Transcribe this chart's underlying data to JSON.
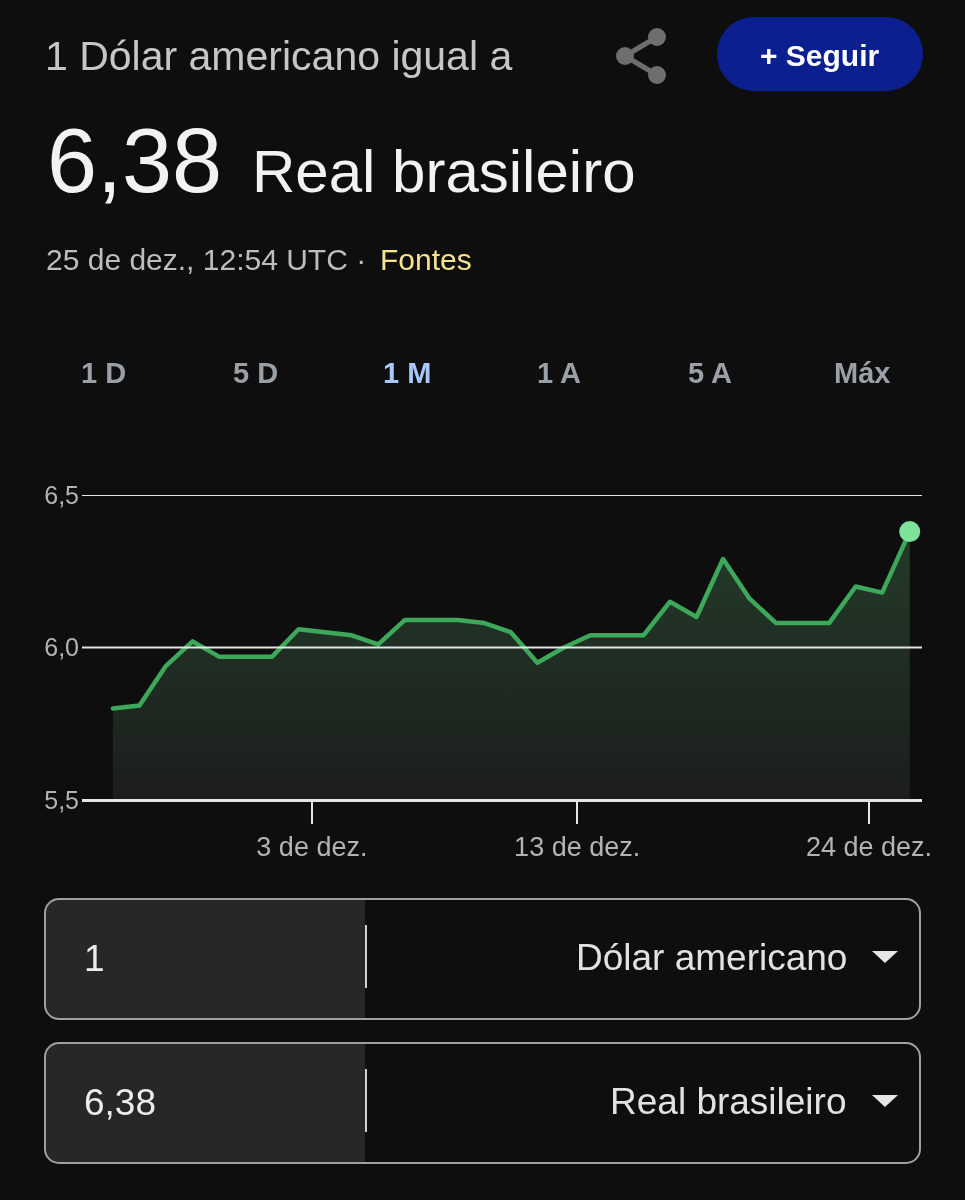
{
  "chart_data": {
    "type": "area",
    "title": "1 Dólar americano igual a",
    "subtitle": "6,38 Real brasileiro",
    "annotations": [
      "+ Seguir",
      "25 de dez., 12:54 UTC ·",
      "Fontes",
      "1 D",
      "5 D",
      "1 M",
      "1 A",
      "5 A",
      "Máx",
      "1",
      "Dólar americano",
      "6,38",
      "Real brasileiro"
    ],
    "x": [
      "--11-25T12:00",
      "--11-26T12:00",
      "--11-27T12:00",
      "--11-28T12:00",
      "--11-29T12:00",
      "--11-30T12:00",
      "--12-01T12:00",
      "--12-02T12:00",
      "--12-03T12:00",
      "--12-04T12:00",
      "--12-05T12:00",
      "--12-06T12:00",
      "--12-07T12:00",
      "--12-08T12:00",
      "--12-09T12:00",
      "--12-10T12:00",
      "--12-11T12:00",
      "--12-12T12:00",
      "--12-13T12:00",
      "--12-14T12:00",
      "--12-15T12:00",
      "--12-16T12:00",
      "--12-17T12:00",
      "--12-18T12:00",
      "--12-19T12:00",
      "--12-20T12:00",
      "--12-21T12:00",
      "--12-22T12:00",
      "--12-23T12:00",
      "--12-24T12:00",
      "--12-25T12:54"
    ],
    "series": [
      {
        "color": "#3da75a",
        "values": [
          5.8,
          5.81,
          5.94,
          6.02,
          5.97,
          5.97,
          5.97,
          6.06,
          6.05,
          6.04,
          6.01,
          6.09,
          6.09,
          6.09,
          6.08,
          6.05,
          5.95,
          6.0,
          6.04,
          6.04,
          6.04,
          6.15,
          6.1,
          6.29,
          6.16,
          6.08,
          6.08,
          6.08,
          6.2,
          6.18,
          6.38
        ]
      },
      {
        "type": "scatter",
        "color": "#7ee29a",
        "marker": "circle",
        "x": [
          "--12-25T12:54"
        ],
        "values": [
          6.38
        ]
      }
    ],
    "xlim": [
      "--11-24T08:00",
      "--12-26T00:00"
    ],
    "xticks": [
      {
        "value": "--12-03",
        "label": "3 de dez."
      },
      {
        "value": "--12-13",
        "label": "13 de dez."
      },
      {
        "value": "--12-24",
        "label": "24 de dez."
      }
    ],
    "ylim": [
      5.5,
      6.5
    ],
    "yticks": [
      {
        "value": 5.5,
        "label": "5,5"
      },
      {
        "value": 6.0,
        "label": "6,0"
      },
      {
        "value": 6.5,
        "label": "6,5"
      }
    ],
    "grid": "y"
  }
}
